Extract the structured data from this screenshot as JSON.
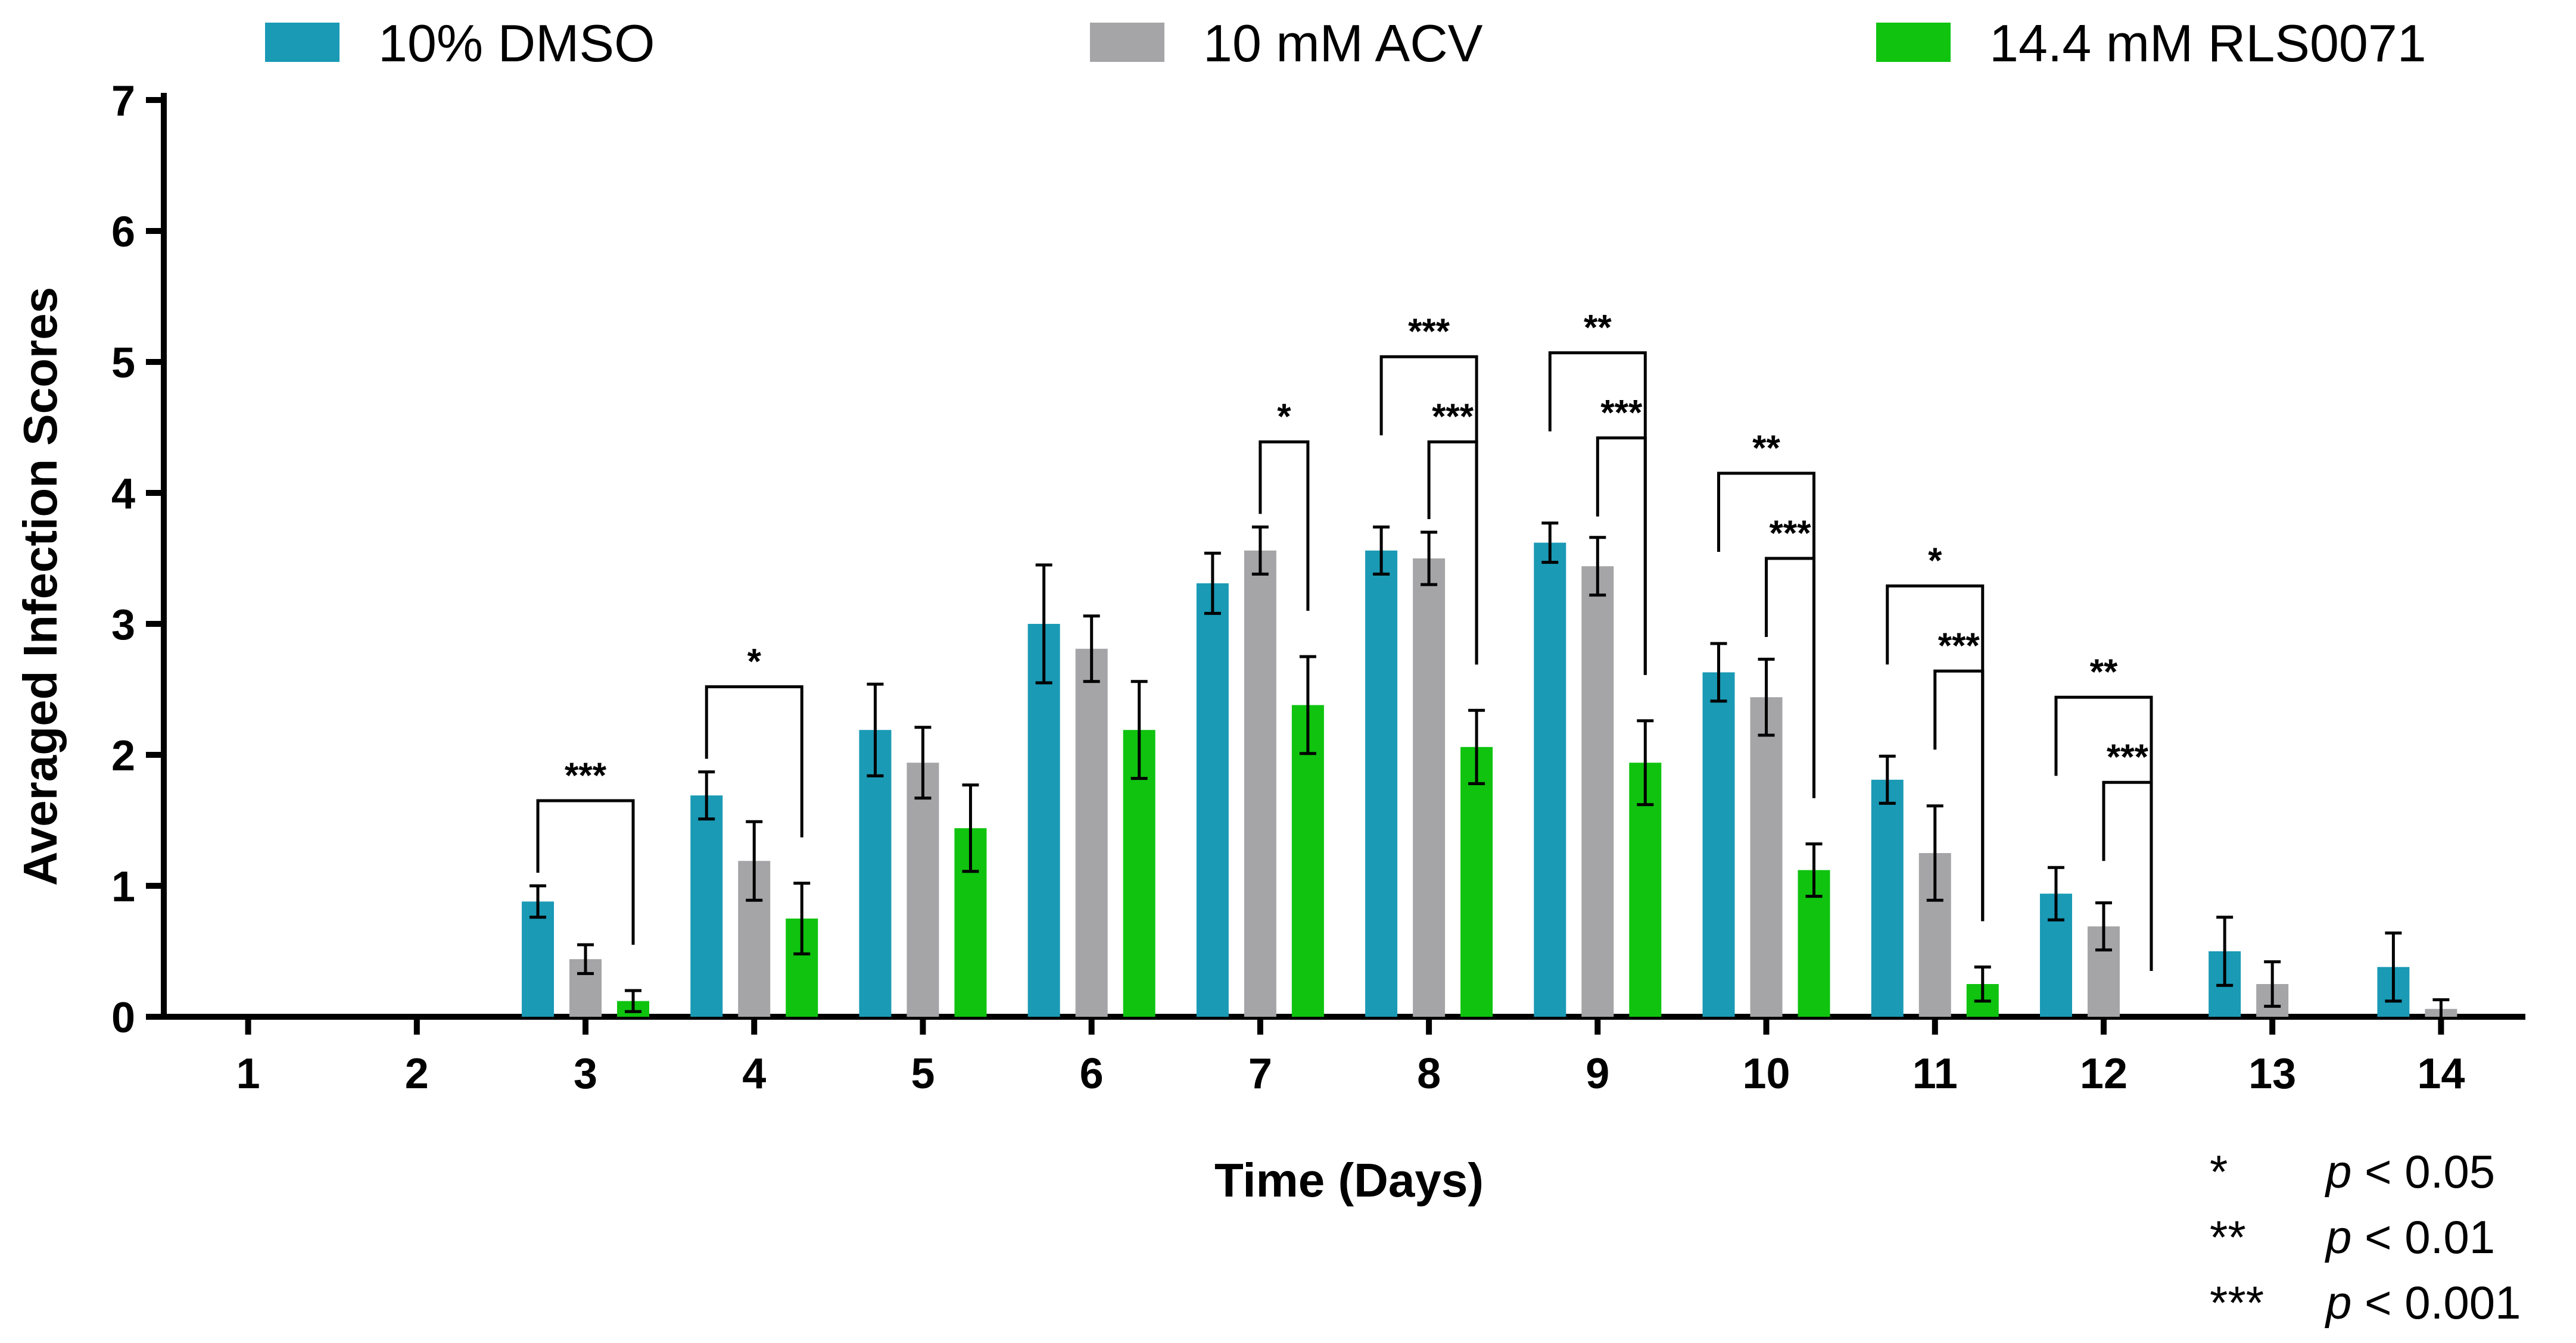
{
  "chart_data": {
    "type": "bar",
    "xlabel": "Time (Days)",
    "ylabel": "Averaged Infection Scores",
    "ylim": [
      0,
      7
    ],
    "yticks": [
      0,
      1,
      2,
      3,
      4,
      5,
      6,
      7
    ],
    "legend_position": "top",
    "categories": [
      "1",
      "2",
      "3",
      "4",
      "5",
      "6",
      "7",
      "8",
      "9",
      "10",
      "11",
      "12",
      "13",
      "14"
    ],
    "series": [
      {
        "name": "10% DMSO",
        "color": "#1a9ab5",
        "values": [
          0,
          0,
          0.88,
          1.69,
          2.19,
          3.0,
          3.31,
          3.56,
          3.62,
          2.63,
          1.81,
          0.94,
          0.5,
          0.38
        ],
        "errors": [
          0,
          0,
          0.12,
          0.18,
          0.35,
          0.45,
          0.23,
          0.18,
          0.15,
          0.22,
          0.18,
          0.2,
          0.26,
          0.26
        ]
      },
      {
        "name": "10 mM ACV",
        "color": "#a5a5a8",
        "values": [
          0,
          0,
          0.44,
          1.19,
          1.94,
          2.81,
          3.56,
          3.5,
          3.44,
          2.44,
          1.25,
          0.69,
          0.25,
          0.06
        ],
        "errors": [
          0,
          0,
          0.11,
          0.3,
          0.27,
          0.25,
          0.18,
          0.2,
          0.22,
          0.29,
          0.36,
          0.18,
          0.17,
          0.07
        ]
      },
      {
        "name": "14.4 mM RLS0071",
        "color": "#0fc30f",
        "values": [
          0,
          0,
          0.12,
          0.75,
          1.44,
          2.19,
          2.38,
          2.06,
          1.94,
          1.12,
          0.25,
          0,
          0,
          0
        ],
        "errors": [
          0,
          0,
          0.08,
          0.27,
          0.33,
          0.37,
          0.37,
          0.28,
          0.32,
          0.2,
          0.13,
          0,
          0,
          0
        ]
      }
    ],
    "significance": [
      {
        "day": 3,
        "from": "10% DMSO",
        "to": "14.4 mM RLS0071",
        "stars": "***"
      },
      {
        "day": 4,
        "from": "10% DMSO",
        "to": "14.4 mM RLS0071",
        "stars": "*"
      },
      {
        "day": 7,
        "from": "10 mM ACV",
        "to": "14.4 mM RLS0071",
        "stars": "*"
      },
      {
        "day": 8,
        "from": "10% DMSO",
        "to": "14.4 mM RLS0071",
        "stars": "***"
      },
      {
        "day": 8,
        "from": "10 mM ACV",
        "to": "14.4 mM RLS0071",
        "stars": "***"
      },
      {
        "day": 9,
        "from": "10% DMSO",
        "to": "14.4 mM RLS0071",
        "stars": "**"
      },
      {
        "day": 9,
        "from": "10 mM ACV",
        "to": "14.4 mM RLS0071",
        "stars": "***"
      },
      {
        "day": 10,
        "from": "10% DMSO",
        "to": "14.4 mM RLS0071",
        "stars": "**"
      },
      {
        "day": 10,
        "from": "10 mM ACV",
        "to": "14.4 mM RLS0071",
        "stars": "***"
      },
      {
        "day": 11,
        "from": "10% DMSO",
        "to": "14.4 mM RLS0071",
        "stars": "*"
      },
      {
        "day": 11,
        "from": "10 mM ACV",
        "to": "14.4 mM RLS0071",
        "stars": "***"
      },
      {
        "day": 12,
        "from": "10% DMSO",
        "to": "14.4 mM RLS0071",
        "stars": "**"
      },
      {
        "day": 12,
        "from": "10 mM ACV",
        "to": "14.4 mM RLS0071",
        "stars": "***"
      }
    ],
    "significance_key": [
      {
        "stars": "*",
        "p_symbol": "p",
        "threshold": "< 0.05"
      },
      {
        "stars": "**",
        "p_symbol": "p",
        "threshold": "< 0.01"
      },
      {
        "stars": "***",
        "p_symbol": "p",
        "threshold": "< 0.001"
      }
    ]
  }
}
